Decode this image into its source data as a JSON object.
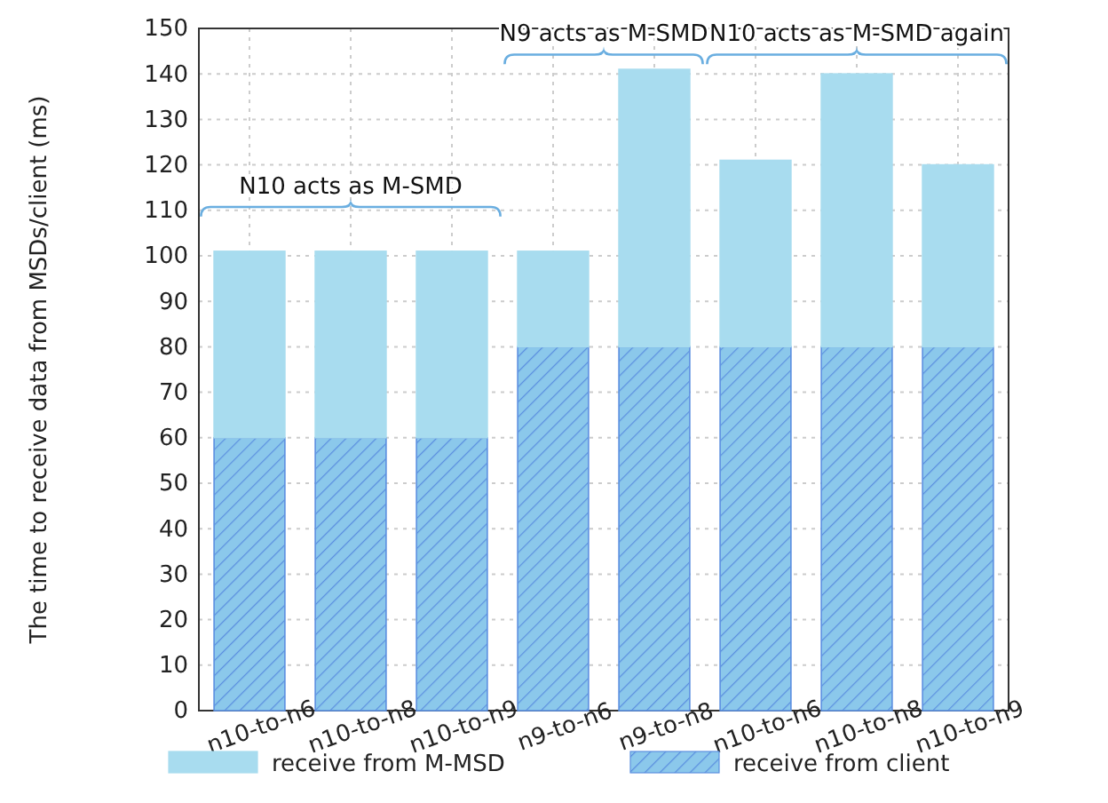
{
  "chart_data": {
    "type": "bar",
    "stacked": true,
    "ylabel": "The time to receive data from MSDs/client (ms)",
    "categories": [
      "n10-to-n6",
      "n10-to-n8",
      "n10-to-n9",
      "n9-to-n6",
      "n9-to-n8",
      "n10-to-n6",
      "n10-to-n8",
      "n10-to-n9"
    ],
    "series": [
      {
        "name": "receive from client",
        "color": "#5b8fe0",
        "values": [
          60,
          60,
          60,
          80,
          80,
          80,
          80,
          80
        ]
      },
      {
        "name": "receive from M-MSD",
        "color": "#a8dcef",
        "values": [
          41,
          41,
          41,
          21,
          61,
          41,
          60,
          40
        ]
      }
    ],
    "ylim": [
      0,
      150
    ],
    "yticks": [
      0,
      10,
      20,
      30,
      40,
      50,
      60,
      70,
      80,
      90,
      100,
      110,
      120,
      130,
      140,
      150
    ],
    "grid": true,
    "legend": "bottom",
    "annotations": [
      "N10 acts as M-SMD",
      "N9 acts as M-SMD",
      "N10 acts as M-SMD again"
    ]
  }
}
